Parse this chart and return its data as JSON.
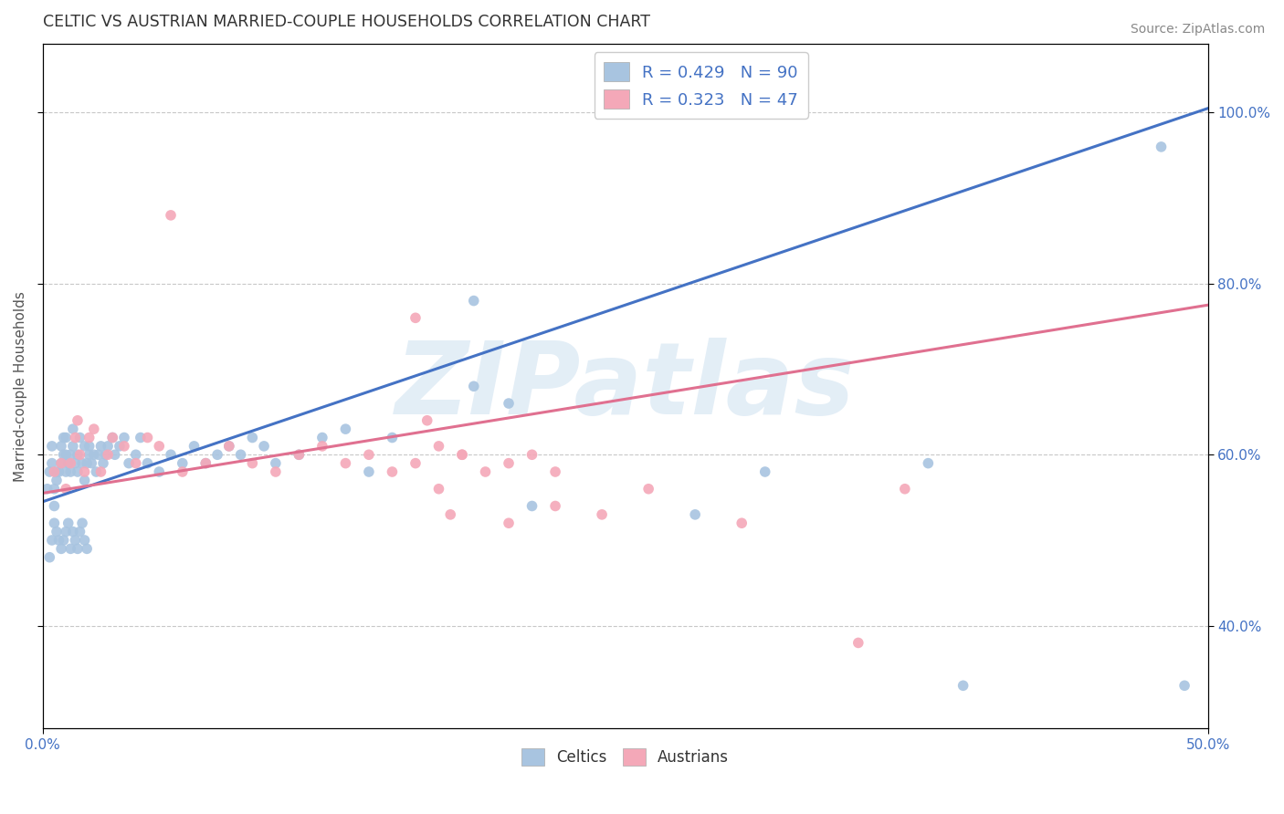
{
  "title": "CELTIC VS AUSTRIAN MARRIED-COUPLE HOUSEHOLDS CORRELATION CHART",
  "source": "Source: ZipAtlas.com",
  "ylabel": "Married-couple Households",
  "watermark": "ZIPatlas",
  "celtics_R": 0.429,
  "celtics_N": 90,
  "austrians_R": 0.323,
  "austrians_N": 47,
  "celtics_color": "#a8c4e0",
  "austrians_color": "#f4a8b8",
  "celtics_line_color": "#4472c4",
  "austrians_line_color": "#e07090",
  "legend_text_color": "#4472c4",
  "title_color": "#333333",
  "background_color": "#ffffff",
  "grid_color": "#c8c8c8",
  "xmin": 0.0,
  "xmax": 0.5,
  "ymin": 0.28,
  "ymax": 1.08,
  "celtics_line": [
    0.0,
    0.545,
    0.5,
    1.005
  ],
  "austrians_line": [
    0.0,
    0.555,
    0.5,
    0.775
  ],
  "right_yticks": [
    0.4,
    0.6,
    0.8,
    1.0
  ],
  "celtics_x": [
    0.002,
    0.003,
    0.004,
    0.004,
    0.005,
    0.005,
    0.006,
    0.006,
    0.007,
    0.008,
    0.008,
    0.009,
    0.009,
    0.01,
    0.01,
    0.01,
    0.011,
    0.012,
    0.012,
    0.013,
    0.013,
    0.014,
    0.015,
    0.015,
    0.016,
    0.017,
    0.018,
    0.018,
    0.019,
    0.02,
    0.02,
    0.021,
    0.022,
    0.023,
    0.024,
    0.025,
    0.026,
    0.027,
    0.028,
    0.03,
    0.031,
    0.033,
    0.035,
    0.037,
    0.04,
    0.042,
    0.045,
    0.05,
    0.055,
    0.06,
    0.065,
    0.07,
    0.075,
    0.08,
    0.085,
    0.09,
    0.095,
    0.1,
    0.11,
    0.12,
    0.13,
    0.14,
    0.15,
    0.003,
    0.004,
    0.005,
    0.006,
    0.007,
    0.008,
    0.009,
    0.01,
    0.011,
    0.012,
    0.013,
    0.014,
    0.015,
    0.016,
    0.017,
    0.018,
    0.019,
    0.185,
    0.185,
    0.2,
    0.21,
    0.28,
    0.31,
    0.38,
    0.395,
    0.48,
    0.49
  ],
  "celtics_y": [
    0.56,
    0.58,
    0.59,
    0.61,
    0.54,
    0.56,
    0.57,
    0.58,
    0.58,
    0.59,
    0.61,
    0.6,
    0.62,
    0.58,
    0.6,
    0.62,
    0.59,
    0.6,
    0.58,
    0.61,
    0.63,
    0.59,
    0.58,
    0.6,
    0.62,
    0.59,
    0.61,
    0.57,
    0.59,
    0.61,
    0.6,
    0.59,
    0.6,
    0.58,
    0.6,
    0.61,
    0.59,
    0.6,
    0.61,
    0.62,
    0.6,
    0.61,
    0.62,
    0.59,
    0.6,
    0.62,
    0.59,
    0.58,
    0.6,
    0.59,
    0.61,
    0.59,
    0.6,
    0.61,
    0.6,
    0.62,
    0.61,
    0.59,
    0.6,
    0.62,
    0.63,
    0.58,
    0.62,
    0.48,
    0.5,
    0.52,
    0.51,
    0.5,
    0.49,
    0.5,
    0.51,
    0.52,
    0.49,
    0.51,
    0.5,
    0.49,
    0.51,
    0.52,
    0.5,
    0.49,
    0.68,
    0.78,
    0.66,
    0.54,
    0.53,
    0.58,
    0.59,
    0.33,
    0.96,
    0.33
  ],
  "austrians_x": [
    0.005,
    0.008,
    0.01,
    0.012,
    0.014,
    0.015,
    0.016,
    0.018,
    0.02,
    0.022,
    0.025,
    0.028,
    0.03,
    0.035,
    0.04,
    0.045,
    0.05,
    0.055,
    0.06,
    0.07,
    0.08,
    0.09,
    0.1,
    0.11,
    0.12,
    0.13,
    0.14,
    0.15,
    0.16,
    0.17,
    0.18,
    0.19,
    0.2,
    0.21,
    0.22,
    0.16,
    0.165,
    0.17,
    0.175,
    0.18,
    0.2,
    0.22,
    0.24,
    0.26,
    0.3,
    0.35,
    0.37
  ],
  "austrians_y": [
    0.58,
    0.59,
    0.56,
    0.59,
    0.62,
    0.64,
    0.6,
    0.58,
    0.62,
    0.63,
    0.58,
    0.6,
    0.62,
    0.61,
    0.59,
    0.62,
    0.61,
    0.88,
    0.58,
    0.59,
    0.61,
    0.59,
    0.58,
    0.6,
    0.61,
    0.59,
    0.6,
    0.58,
    0.59,
    0.61,
    0.6,
    0.58,
    0.59,
    0.6,
    0.58,
    0.76,
    0.64,
    0.56,
    0.53,
    0.6,
    0.52,
    0.54,
    0.53,
    0.56,
    0.52,
    0.38,
    0.56
  ]
}
